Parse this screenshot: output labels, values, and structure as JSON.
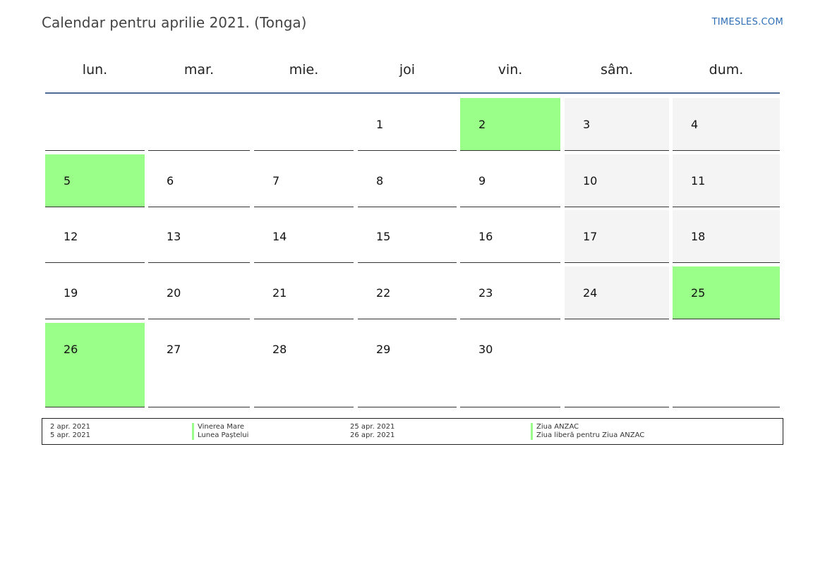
{
  "title": "Calendar pentru aprilie 2021. (Tonga)",
  "site": "TIMESLES.COM",
  "colors": {
    "holiday": "#99ff88",
    "weekend": "#f4f4f4",
    "accent": "#4f6b94",
    "link": "#2f6fb5"
  },
  "weekdays": [
    "lun.",
    "mar.",
    "mie.",
    "joi",
    "vin.",
    "sâm.",
    "dum."
  ],
  "weeks": [
    [
      "",
      "",
      "",
      "1",
      "2",
      "3",
      "4"
    ],
    [
      "5",
      "6",
      "7",
      "8",
      "9",
      "10",
      "11"
    ],
    [
      "12",
      "13",
      "14",
      "15",
      "16",
      "17",
      "18"
    ],
    [
      "19",
      "20",
      "21",
      "22",
      "23",
      "24",
      "25"
    ],
    [
      "26",
      "27",
      "28",
      "29",
      "30",
      "",
      ""
    ]
  ],
  "holidays": [
    {
      "date": "2 apr. 2021",
      "name": "Vinerea Mare"
    },
    {
      "date": "5 apr. 2021",
      "name": "Lunea Paștelui"
    },
    {
      "date": "25 apr. 2021",
      "name": "Ziua ANZAC"
    },
    {
      "date": "26 apr. 2021",
      "name": "Ziua liberă pentru Ziua ANZAC"
    }
  ]
}
